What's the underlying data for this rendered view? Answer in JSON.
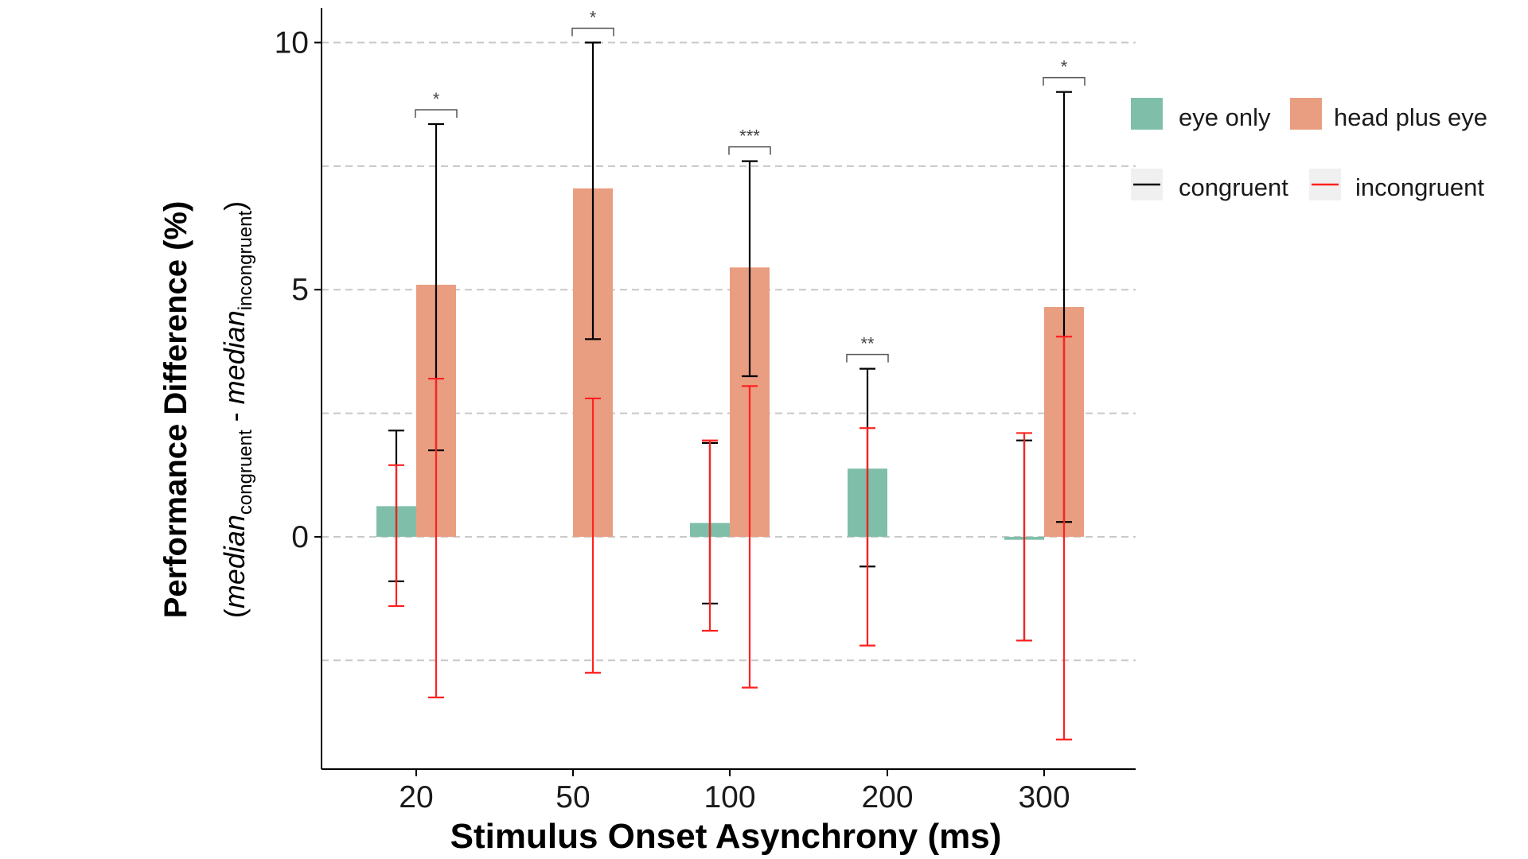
{
  "chart_data": {
    "type": "bar",
    "title": "",
    "xlabel": "Stimulus Onset Asynchrony (ms)",
    "ylabel": {
      "main": "Performance Difference (%)",
      "open": "(",
      "median": "median",
      "congruent": "congruent",
      "minus": " - ",
      "incongruent": "incongruent",
      "close": ")"
    },
    "categories": [
      "20",
      "50",
      "100",
      "200",
      "300"
    ],
    "ylim": [
      -4.7,
      10.7
    ],
    "yticks": [
      0,
      5,
      10
    ],
    "ytick_labels": [
      "0",
      "5",
      "10"
    ],
    "grid": "horizontal dashed at 0, 2.5, 5, 7.5, 10 and -2.5",
    "gridlines": [
      -2.5,
      0,
      2.5,
      5,
      7.5,
      10
    ],
    "legend_position": "right",
    "series": [
      {
        "name": "eye only",
        "color": "#7fbfa9",
        "values": [
          0.62,
          null,
          0.28,
          1.38,
          -0.06
        ],
        "congruent_ci": [
          [
            -0.9,
            2.15
          ],
          null,
          [
            -1.35,
            1.9
          ],
          [
            -0.6,
            3.4
          ],
          [
            -2.1,
            1.95
          ]
        ],
        "incongruent_ci": [
          [
            -1.4,
            1.45
          ],
          null,
          [
            -1.9,
            1.95
          ],
          [
            -2.2,
            2.2
          ],
          [
            -2.1,
            2.1
          ]
        ]
      },
      {
        "name": "head plus eye",
        "color": "#ea9e81",
        "values": [
          5.1,
          7.05,
          5.45,
          null,
          4.65
        ],
        "congruent_ci": [
          [
            1.75,
            8.35
          ],
          [
            4.0,
            10.0
          ],
          [
            3.25,
            7.6
          ],
          null,
          [
            0.3,
            9.0
          ]
        ],
        "incongruent_ci": [
          [
            -3.25,
            3.2
          ],
          [
            -2.75,
            2.8
          ],
          [
            -3.05,
            3.05
          ],
          null,
          [
            -4.1,
            4.05
          ]
        ]
      }
    ],
    "errorbar_legend": [
      {
        "name": "congruent",
        "color": "#000000"
      },
      {
        "name": "incongruent",
        "color": "#ff2020"
      }
    ],
    "significance": [
      {
        "category": "20",
        "series": "head plus eye",
        "label": "*"
      },
      {
        "category": "50",
        "series": "head plus eye",
        "label": "*"
      },
      {
        "category": "100",
        "series": "head plus eye",
        "label": "***"
      },
      {
        "category": "200",
        "series": "eye only",
        "label": "**"
      },
      {
        "category": "300",
        "series": "head plus eye",
        "label": "*"
      }
    ]
  }
}
